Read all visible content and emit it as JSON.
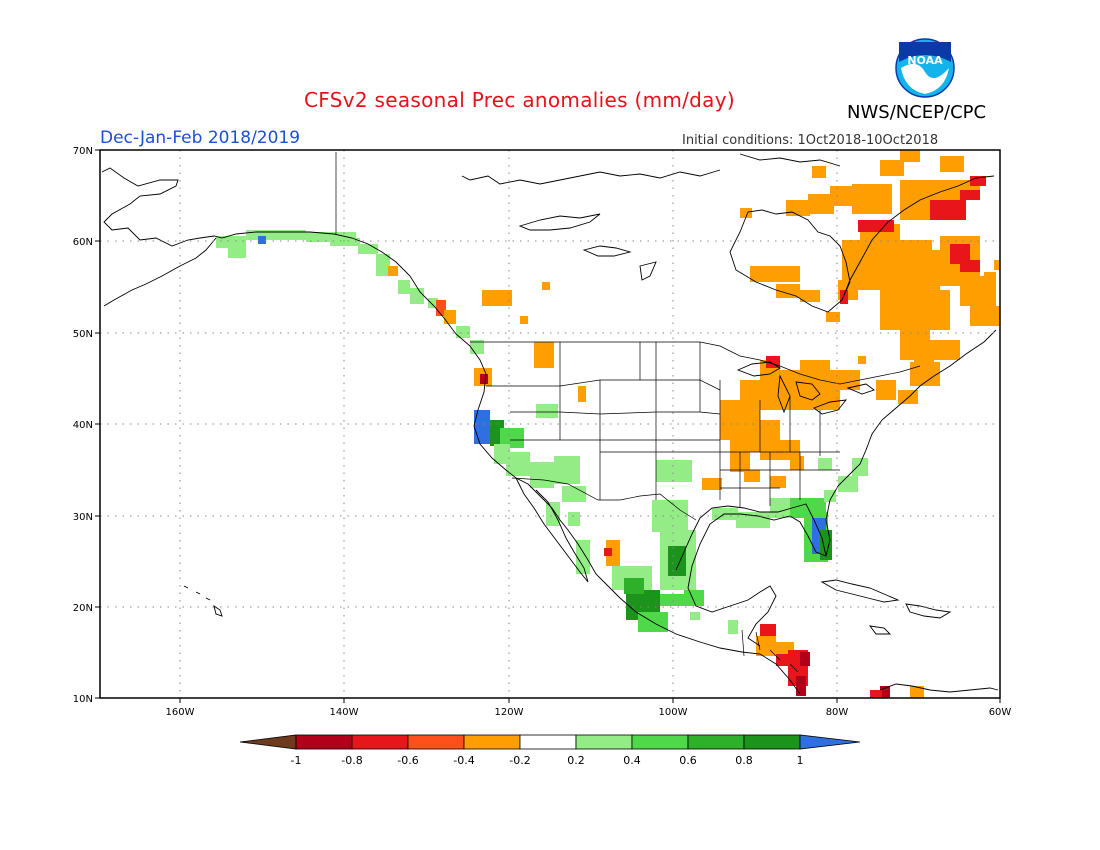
{
  "title": "CFSv2 seasonal Prec anomalies (mm/day)",
  "agency": "NWS/NCEP/CPC",
  "season": "Dec-Jan-Feb 2018/2019",
  "initial_conditions": "Initial conditions: 1Oct2018-10Oct2018",
  "logo": {
    "icon": "noaa-logo-icon",
    "text": "NOAA"
  },
  "colors": {
    "brown": "#6e3b1e",
    "darkred": "#b3001a",
    "red": "#e8151b",
    "orangered": "#ff4f1a",
    "orange": "#ff9e00",
    "white": "#ffffff",
    "lightgreen": "#94ec86",
    "green": "#4fd94a",
    "midgreen": "#2eb02a",
    "darkgreen": "#1c931a",
    "blue": "#2f6fe0"
  },
  "map": {
    "lon_ticks": [
      "160W",
      "140W",
      "120W",
      "100W",
      "80W",
      "60W"
    ],
    "lat_ticks": [
      "10N",
      "20N",
      "30N",
      "40N",
      "50N",
      "60N",
      "70N"
    ]
  },
  "legend": {
    "labels": [
      "-1",
      "-0.8",
      "-0.6",
      "-0.4",
      "-0.2",
      "0.2",
      "0.4",
      "0.6",
      "0.8",
      "1"
    ]
  }
}
